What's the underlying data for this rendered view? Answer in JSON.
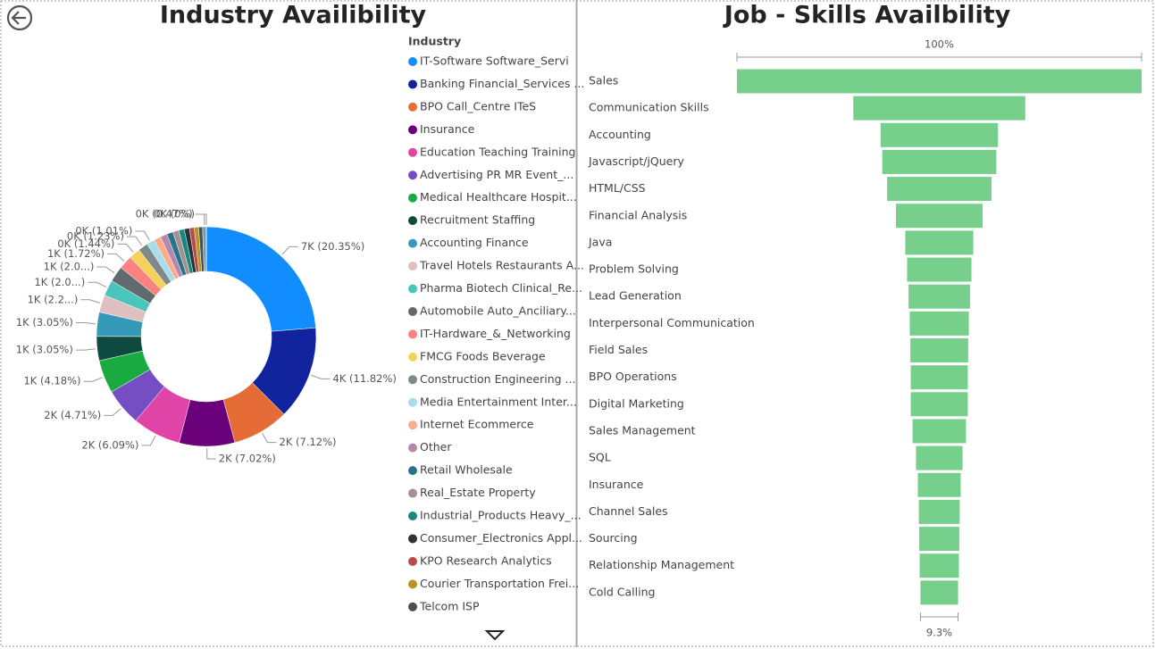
{
  "chart_data": [
    {
      "type": "donut",
      "title": "Industry Availibility",
      "legend_title": "Industry",
      "categories": [
        "IT-Software Software_Servi",
        "Banking Financial_Services ...",
        "BPO Call_Centre ITeS",
        "Insurance",
        "Education Teaching Training",
        "Advertising PR MR Event_...",
        "Medical Healthcare Hospit...",
        "Recruitment Staffing",
        "Accounting Finance",
        "Travel Hotels Restaurants A...",
        "Pharma Biotech Clinical_Re...",
        "Automobile Auto_Anciliary...",
        "IT-Hardware_&_Networking",
        "FMCG Foods Beverage",
        "Construction Engineering ...",
        "Media Entertainment Inter...",
        "Internet Ecommerce",
        "Other",
        "Retail Wholesale",
        "Real_Estate Property",
        "Industrial_Products Heavy_...",
        "Consumer_Electronics Appl...",
        "KPO Research Analytics",
        "Courier Transportation Frei...",
        "Telcom ISP",
        null,
        null
      ],
      "values": [
        20.35,
        11.82,
        7.12,
        7.02,
        6.09,
        4.71,
        4.18,
        3.05,
        3.05,
        2.2,
        2.0,
        2.0,
        1.72,
        1.44,
        1.23,
        1.01,
        0.9,
        0.85,
        0.8,
        0.75,
        0.7,
        0.65,
        0.6,
        0.55,
        0.5,
        0.47,
        0
      ],
      "value_labels": [
        "7K (20.35%)",
        "4K (11.82%)",
        "2K (7.12%)",
        "2K (7.02%)",
        "2K (6.09%)",
        "2K (4.71%)",
        "1K (4.18%)",
        "1K (3.05%)",
        "1K (3.05%)",
        "1K (2.2...)",
        "1K (2.0...)",
        "1K (2.0...)",
        "1K (1.72%)",
        "0K (1.44%)",
        "0K (1.23%)",
        "0K (1.01%)",
        null,
        null,
        null,
        null,
        null,
        null,
        null,
        null,
        null,
        "0K (0.47%)",
        "0K (0%)"
      ],
      "colors": [
        "#118DFF",
        "#12239E",
        "#E66C37",
        "#6B007B",
        "#E044A7",
        "#744EC2",
        "#1AAB40",
        "#0E4A3F",
        "#3599B8",
        "#DFBFBF",
        "#4AC5BB",
        "#5F6B6D",
        "#FB8281",
        "#F4D25A",
        "#7F898A",
        "#A4DDEE",
        "#FDAB89",
        "#B687AC",
        "#28738A",
        "#A78F8F",
        "#168980",
        "#293537",
        "#BB4A4A",
        "#B59525",
        "#475052",
        "#6A9FB0",
        "#BD7150"
      ]
    },
    {
      "type": "funnel",
      "title": "Job - Skills Availbility",
      "color": "#77CF8C",
      "categories": [
        "Sales",
        "Communication Skills",
        "Accounting",
        "Javascript/jQuery",
        "HTML/CSS",
        "Financial Analysis",
        "Java",
        "Problem Solving",
        "Lead Generation",
        "Interpersonal Communication",
        "Field Sales",
        "BPO Operations",
        "Digital Marketing",
        "Sales Management",
        "SQL",
        "Insurance",
        "Channel Sales",
        "Sourcing",
        "Relationship Management",
        "Cold Calling"
      ],
      "values": [
        100,
        42.5,
        29,
        28.2,
        25.8,
        21.4,
        16.8,
        15.9,
        15.2,
        14.6,
        14.3,
        14.1,
        14.1,
        13.2,
        11.5,
        10.6,
        10.1,
        9.9,
        9.7,
        9.3
      ],
      "value_labels": [
        "100%",
        null,
        null,
        null,
        null,
        null,
        null,
        null,
        null,
        null,
        null,
        null,
        null,
        null,
        null,
        null,
        null,
        null,
        null,
        "9.3%"
      ]
    }
  ]
}
